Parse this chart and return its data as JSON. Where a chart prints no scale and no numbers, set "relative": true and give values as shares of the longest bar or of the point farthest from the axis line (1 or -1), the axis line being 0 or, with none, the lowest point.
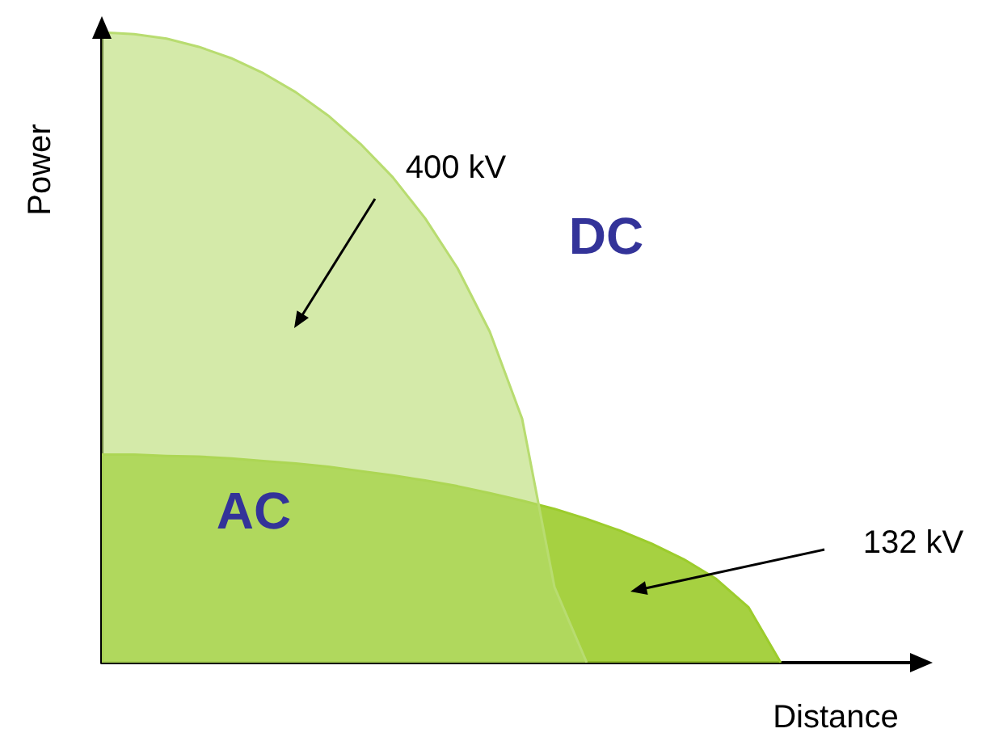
{
  "chart_data": {
    "type": "area",
    "relative": true,
    "xlabel": "Distance",
    "ylabel": "Power",
    "categories": [
      null,
      null,
      null,
      null,
      null,
      null,
      null,
      null,
      null,
      null,
      null,
      null,
      null,
      null,
      null,
      null,
      null,
      null,
      null,
      null,
      null,
      null,
      null,
      null,
      null,
      null
    ],
    "series": [
      {
        "name": "400 kV",
        "color": "#b8dc70",
        "values": [
          1,
          0.997,
          0.99,
          0.977,
          0.959,
          0.935,
          0.905,
          0.868,
          0.823,
          0.77,
          0.705,
          0.626,
          0.525,
          0.387,
          0.12,
          0,
          null,
          null,
          null,
          null,
          null,
          null,
          null,
          null,
          null,
          null
        ]
      },
      {
        "name": "132 kV",
        "color": "#9ccc2c",
        "values": [
          0.33,
          0.33,
          0.328,
          0.327,
          0.324,
          0.32,
          0.316,
          0.311,
          0.304,
          0.297,
          0.289,
          0.28,
          0.269,
          0.257,
          0.244,
          0.228,
          0.21,
          0.189,
          0.164,
          0.133,
          0.088,
          0,
          null,
          null,
          null,
          null
        ]
      }
    ],
    "annotations": [
      "DC",
      "AC"
    ],
    "grid": false,
    "legend": false
  }
}
